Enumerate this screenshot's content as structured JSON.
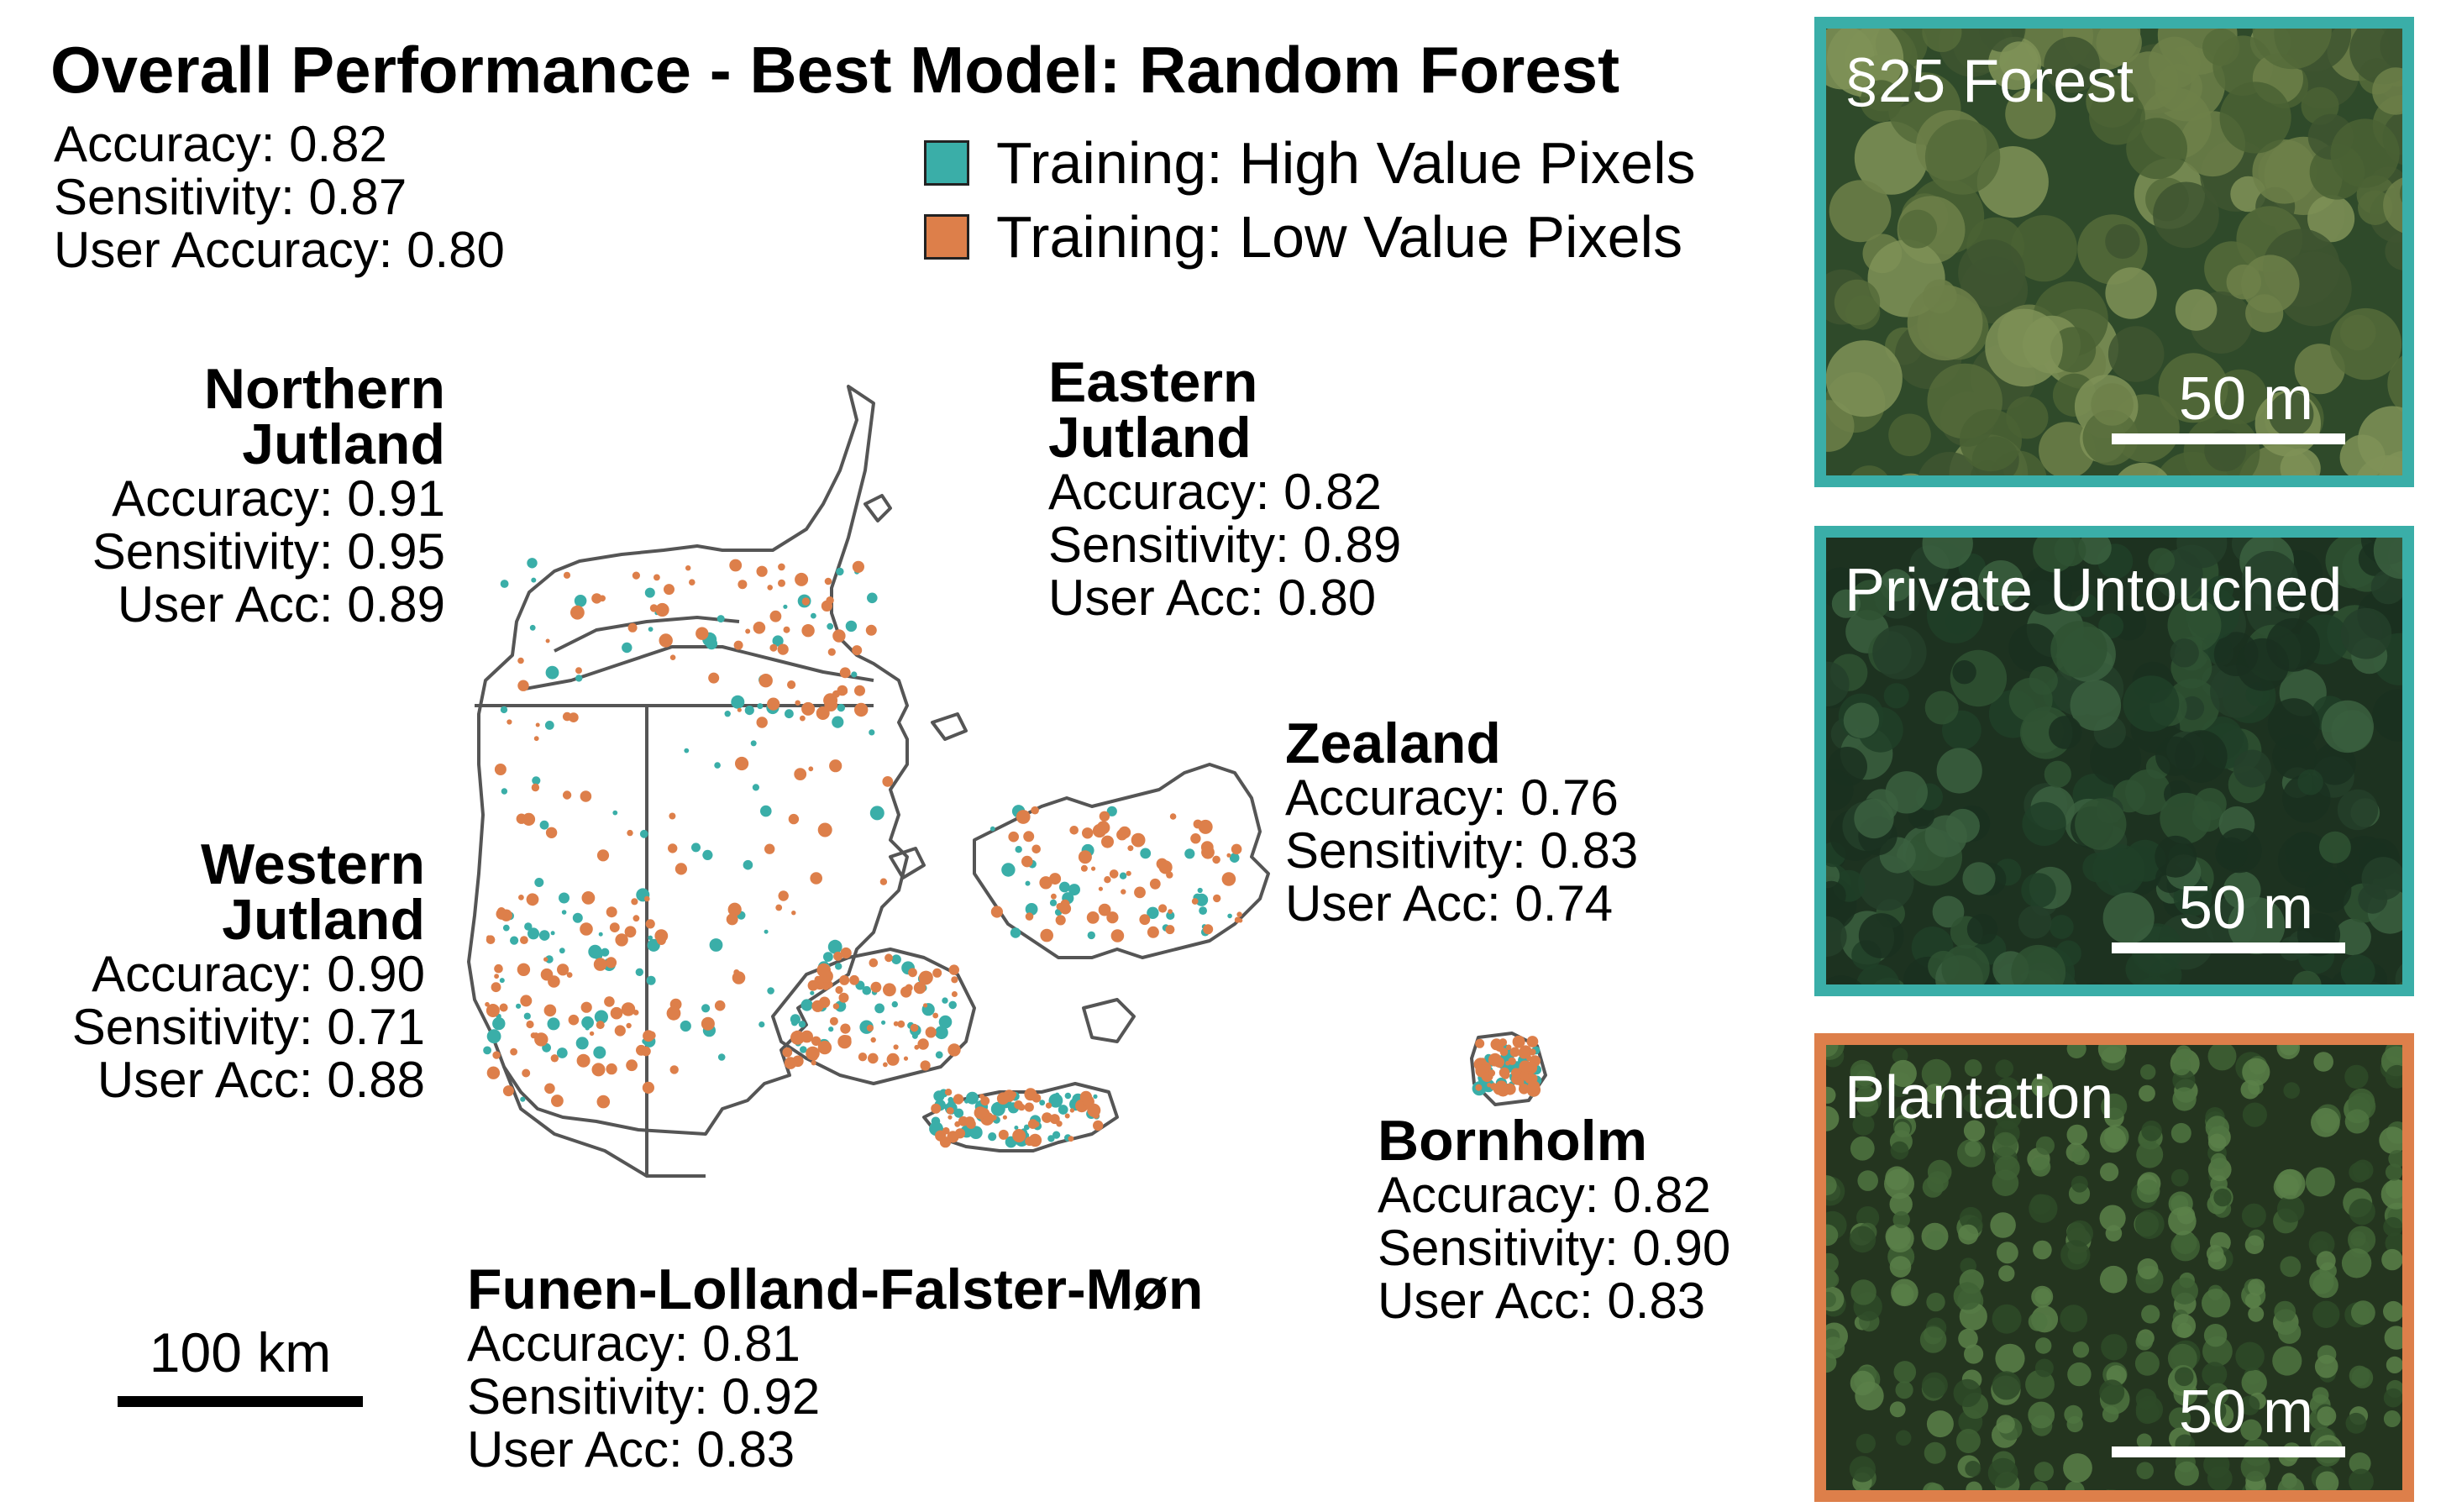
{
  "title": "Overall Performance - Best Model: Random Forest",
  "overall": {
    "accuracy": "Accuracy: 0.82",
    "sensitivity": "Sensitivity: 0.87",
    "user_accuracy": "User Accuracy: 0.80"
  },
  "legend": [
    {
      "label": "Training: High Value Pixels",
      "color": "#3aaea8"
    },
    {
      "label": "Training: Low Value Pixels",
      "color": "#dd7f4a"
    }
  ],
  "regions": {
    "northern_jutland": {
      "name_line1": "Northern",
      "name_line2": "Jutland",
      "accuracy": "Accuracy: 0.91",
      "sensitivity": "Sensitivity: 0.95",
      "user_acc": "User Acc: 0.89"
    },
    "eastern_jutland": {
      "name_line1": "Eastern",
      "name_line2": "Jutland",
      "accuracy": "Accuracy: 0.82",
      "sensitivity": "Sensitivity: 0.89",
      "user_acc": "User Acc: 0.80"
    },
    "zealand": {
      "name": "Zealand",
      "accuracy": "Accuracy: 0.76",
      "sensitivity": "Sensitivity: 0.83",
      "user_acc": "User Acc: 0.74"
    },
    "western_jutland": {
      "name_line1": "Western",
      "name_line2": "Jutland",
      "accuracy": "Accuracy: 0.90",
      "sensitivity": "Sensitivity: 0.71",
      "user_acc": "User Acc: 0.88"
    },
    "bornholm": {
      "name": "Bornholm",
      "accuracy": "Accuracy: 0.82",
      "sensitivity": "Sensitivity: 0.90",
      "user_acc": "User Acc: 0.83"
    },
    "funen": {
      "name": "Funen-Lolland-Falster-Møn",
      "accuracy": "Accuracy: 0.81",
      "sensitivity": "Sensitivity: 0.92",
      "user_acc": "User Acc: 0.83"
    }
  },
  "map_scale": "100 km",
  "panels": [
    {
      "label": "§25 Forest",
      "scale": "50 m",
      "border": "#3aaea8"
    },
    {
      "label": "Private Untouched",
      "scale": "50 m",
      "border": "#3aaea8"
    },
    {
      "label": "Plantation",
      "scale": "50 m",
      "border": "#dd7f4a"
    }
  ],
  "colors": {
    "high": "#3aaea8",
    "low": "#dd7f4a",
    "outline": "#555555"
  }
}
